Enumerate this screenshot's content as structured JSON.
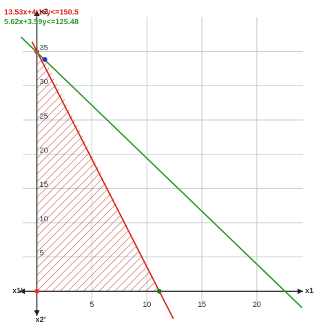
{
  "chart_data": {
    "type": "line",
    "x_axis_label": "x1",
    "x_axis_neg_label": "x1'",
    "y_axis_label": "x2",
    "y_axis_neg_label": "x2'",
    "xlim": [
      -1.6,
      24.2
    ],
    "ylim": [
      -4.8,
      41
    ],
    "xticks": [
      5,
      10,
      15,
      20
    ],
    "yticks": [
      5,
      10,
      15,
      20,
      25,
      30,
      35
    ],
    "grid": true,
    "series": [
      {
        "name": "13.53x+4.16y<=150.5",
        "color": "#e0261d",
        "x": [
          -0.44,
          12.4
        ],
        "values": [
          36.4,
          -4.0
        ]
      },
      {
        "name": "5.62x+3.59y<=125.48",
        "color": "#2e9a2e",
        "x": [
          -1.44,
          24.1
        ],
        "values": [
          37.1,
          -2.4
        ]
      }
    ],
    "region": {
      "color": "#c0392b",
      "x": [
        0,
        0,
        0.727,
        11.12
      ],
      "y": [
        0,
        34.95,
        33.82,
        0
      ]
    },
    "points": [
      {
        "x": 0,
        "y": 0,
        "color": "#ff2a1a"
      },
      {
        "x": 0,
        "y": 34.95,
        "color": "#b0503c"
      },
      {
        "x": 0.727,
        "y": 33.82,
        "color": "#2233dd"
      },
      {
        "x": 11.12,
        "y": 0,
        "color": "#1f7a1f"
      }
    ]
  }
}
